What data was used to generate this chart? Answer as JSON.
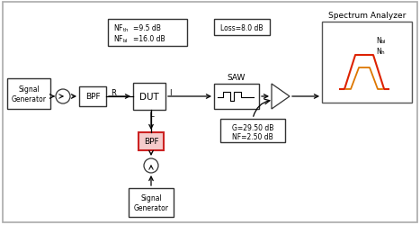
{
  "bg_color": "#ffffff",
  "border_color": "#aaaaaa",
  "box_fc": "#ffffff",
  "box_ec": "#333333",
  "bpf_bot_fc": "#f5cccc",
  "bpf_bot_ec": "#cc2222",
  "spec_ec": "#555555",
  "nbl_color": "#dd2200",
  "nth_color": "#dd7700",
  "watermark_color": "#f0b0b0",
  "title_spectrum": "Spectrum Analyzer",
  "label_nbl": "N",
  "label_nbl_sub": "bl",
  "label_nth": "N",
  "label_nth_sub": "th",
  "label_saw": "SAW",
  "label_loss": "Loss=8.0 dB",
  "label_nf_th_pre": "NF",
  "label_nf_th_sub": "th",
  "label_nf_th_post": "=9.5 dB",
  "label_nf_bl_pre": "NF",
  "label_nf_bl_sub": "bl",
  "label_nf_bl_post": "=16.0 dB",
  "label_g": "G=29.50 dB",
  "label_nf": "NF=2.50 dB",
  "label_dut": "DUT",
  "label_bpf": "BPF",
  "label_sig_gen_top": "Signal\nGenerator",
  "label_sig_gen_bot": "Signal\nGenerator",
  "label_r": "R",
  "label_i": "I",
  "label_l": "L",
  "fig_w": 4.67,
  "fig_h": 2.51,
  "dpi": 100
}
